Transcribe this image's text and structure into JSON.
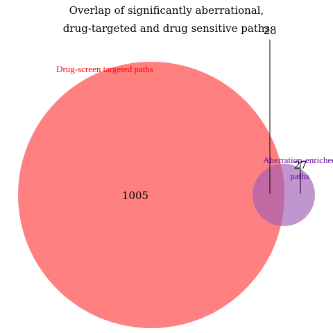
{
  "title_lines": [
    "Overlap of significantly aberrational,",
    "drug-targeted and drug sensitive paths"
  ],
  "sets": [
    {
      "key": "drug_screen",
      "label": "Drug-screen targeted paths",
      "color": "#ff0000",
      "fill": "#ff8080"
    },
    {
      "key": "aberration",
      "label_lines": [
        "Aberration-enriched",
        "paths"
      ],
      "color": "#6a0dad",
      "fill": "#b08ac8"
    }
  ],
  "counts": {
    "drug_screen_only": "1005",
    "overlap": "28",
    "aberration_only": "27"
  },
  "icons": {
    "drug_screen_circle": "large-red-circle",
    "aberration_circle": "small-purple-circle"
  }
}
